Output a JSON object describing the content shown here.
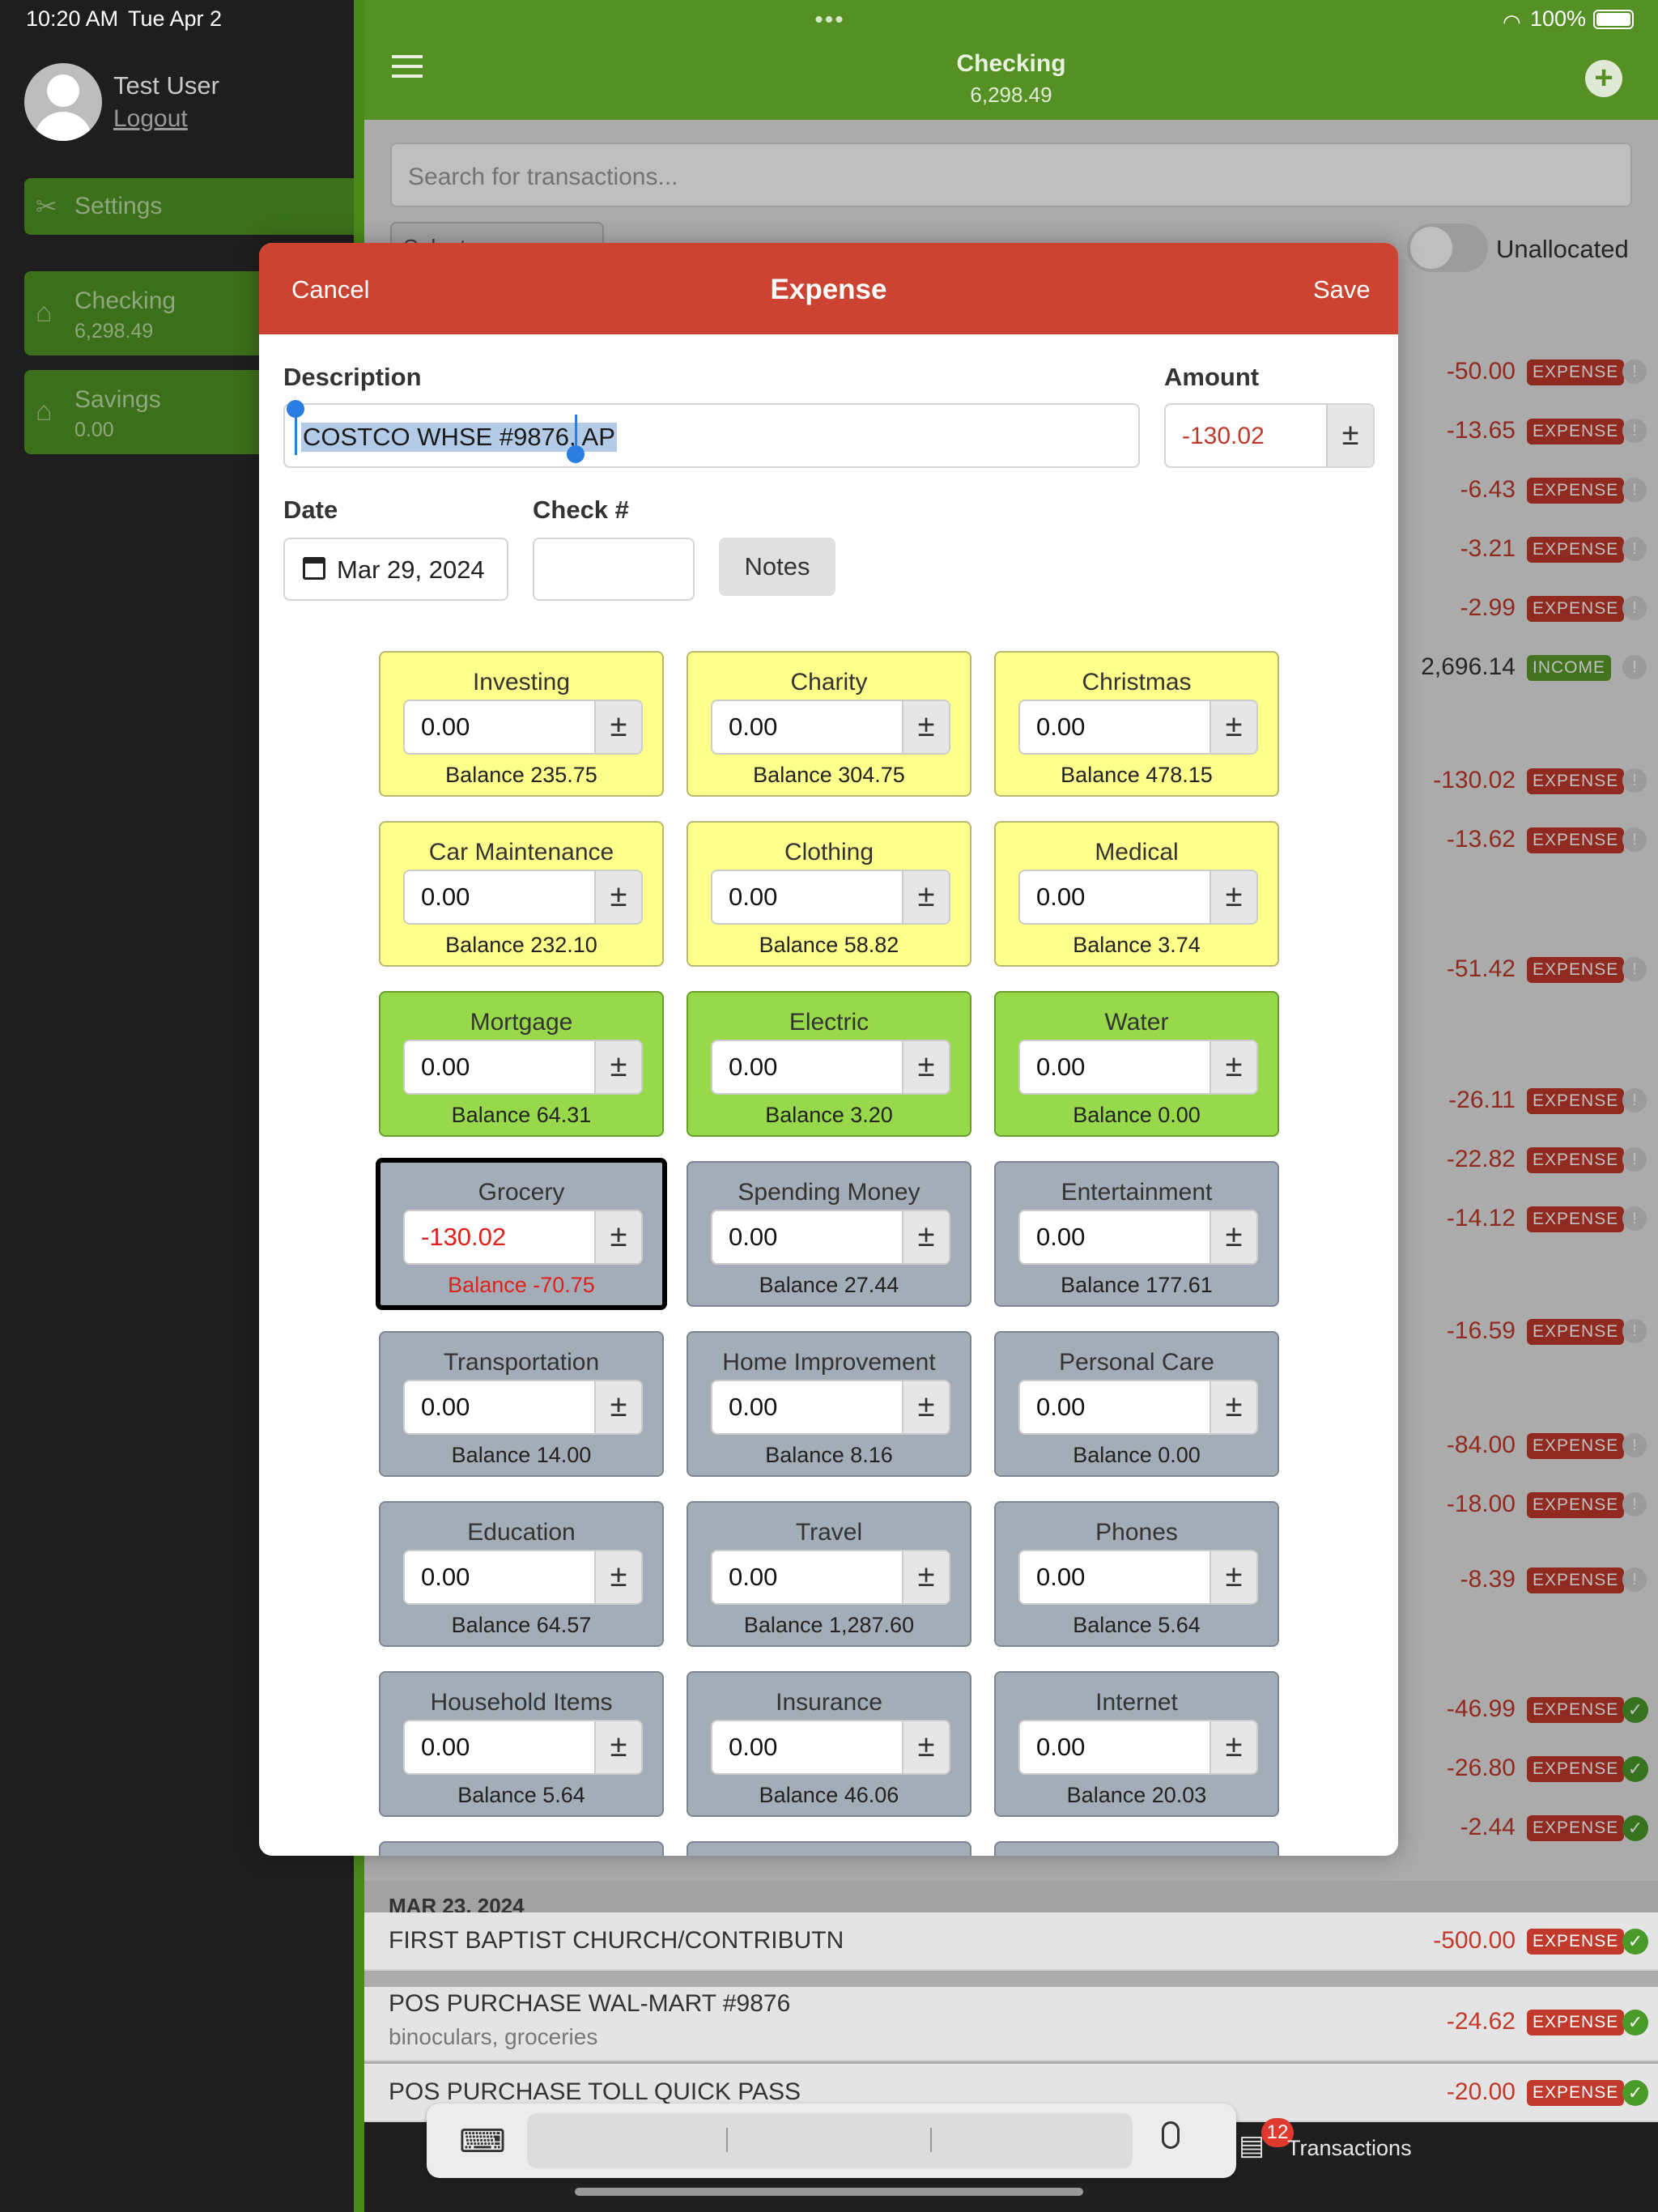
{
  "status_bar": {
    "time": "10:20 AM",
    "date": "Tue Apr 2",
    "battery": "100%"
  },
  "sidebar": {
    "user_name": "Test User",
    "logout_label": "Logout",
    "settings_label": "Settings",
    "accounts": [
      {
        "name": "Checking",
        "balance": "6,298.49"
      },
      {
        "name": "Savings",
        "balance": "0.00"
      }
    ]
  },
  "header": {
    "title": "Checking",
    "balance": "6,298.49"
  },
  "search": {
    "placeholder": "Search for transactions..."
  },
  "select_button_label": "Select",
  "unallocated_label": "Unallocated",
  "transactions_right": [
    {
      "amount": "-50.00",
      "type": "EXPENSE",
      "status": "info"
    },
    {
      "amount": "-13.65",
      "type": "EXPENSE",
      "status": "info"
    },
    {
      "amount": "-6.43",
      "type": "EXPENSE",
      "status": "info"
    },
    {
      "amount": "-3.21",
      "type": "EXPENSE",
      "status": "info"
    },
    {
      "amount": "-2.99",
      "type": "EXPENSE",
      "status": "info"
    },
    {
      "amount": "2,696.14",
      "type": "INCOME",
      "status": "info"
    },
    {
      "amount": "-130.02",
      "type": "EXPENSE",
      "status": "info"
    },
    {
      "amount": "-13.62",
      "type": "EXPENSE",
      "status": "info"
    },
    {
      "amount": "-51.42",
      "type": "EXPENSE",
      "status": "info"
    },
    {
      "amount": "-26.11",
      "type": "EXPENSE",
      "status": "info"
    },
    {
      "amount": "-22.82",
      "type": "EXPENSE",
      "status": "info"
    },
    {
      "amount": "-14.12",
      "type": "EXPENSE",
      "status": "info"
    },
    {
      "amount": "-16.59",
      "type": "EXPENSE",
      "status": "info"
    },
    {
      "amount": "-84.00",
      "type": "EXPENSE",
      "status": "info"
    },
    {
      "amount": "-18.00",
      "type": "EXPENSE",
      "status": "info"
    },
    {
      "amount": "-8.39",
      "type": "EXPENSE",
      "status": "info"
    },
    {
      "amount": "-46.99",
      "type": "EXPENSE",
      "status": "cleared"
    },
    {
      "amount": "-26.80",
      "type": "EXPENSE",
      "status": "cleared"
    },
    {
      "amount": "-2.44",
      "type": "EXPENSE",
      "status": "cleared"
    }
  ],
  "date_group": "MAR 23, 2024",
  "transactions_bottom": [
    {
      "description": "FIRST BAPTIST CHURCH/CONTRIBUTN",
      "note": "",
      "amount": "-500.00",
      "type": "EXPENSE"
    },
    {
      "description": "POS PURCHASE WAL-MART #9876",
      "note": "binoculars, groceries",
      "amount": "-24.62",
      "type": "EXPENSE"
    },
    {
      "description": "POS PURCHASE TOLL QUICK PASS",
      "note": "",
      "amount": "-20.00",
      "type": "EXPENSE"
    }
  ],
  "modal": {
    "cancel_label": "Cancel",
    "title": "Expense",
    "save_label": "Save",
    "description_label": "Description",
    "description_value": "COSTCO WHSE #9876, AP",
    "amount_label": "Amount",
    "amount_value": "-130.02",
    "date_label": "Date",
    "date_value": "Mar 29, 2024",
    "check_label": "Check #",
    "check_value": "",
    "notes_label": "Notes",
    "pm_symbol": "±",
    "categories": [
      {
        "name": "Investing",
        "value": "0.00",
        "balance": "Balance 235.75",
        "color": "yellow"
      },
      {
        "name": "Charity",
        "value": "0.00",
        "balance": "Balance 304.75",
        "color": "yellow"
      },
      {
        "name": "Christmas",
        "value": "0.00",
        "balance": "Balance 478.15",
        "color": "yellow"
      },
      {
        "name": "Car Maintenance",
        "value": "0.00",
        "balance": "Balance 232.10",
        "color": "yellow"
      },
      {
        "name": "Clothing",
        "value": "0.00",
        "balance": "Balance 58.82",
        "color": "yellow"
      },
      {
        "name": "Medical",
        "value": "0.00",
        "balance": "Balance 3.74",
        "color": "yellow"
      },
      {
        "name": "Mortgage",
        "value": "0.00",
        "balance": "Balance 64.31",
        "color": "green"
      },
      {
        "name": "Electric",
        "value": "0.00",
        "balance": "Balance 3.20",
        "color": "green"
      },
      {
        "name": "Water",
        "value": "0.00",
        "balance": "Balance 0.00",
        "color": "green"
      },
      {
        "name": "Grocery",
        "value": "-130.02",
        "balance": "Balance -70.75",
        "color": "slate",
        "selected": true
      },
      {
        "name": "Spending Money",
        "value": "0.00",
        "balance": "Balance 27.44",
        "color": "slate"
      },
      {
        "name": "Entertainment",
        "value": "0.00",
        "balance": "Balance 177.61",
        "color": "slate"
      },
      {
        "name": "Transportation",
        "value": "0.00",
        "balance": "Balance 14.00",
        "color": "slate"
      },
      {
        "name": "Home Improvement",
        "value": "0.00",
        "balance": "Balance 8.16",
        "color": "slate"
      },
      {
        "name": "Personal Care",
        "value": "0.00",
        "balance": "Balance 0.00",
        "color": "slate"
      },
      {
        "name": "Education",
        "value": "0.00",
        "balance": "Balance 64.57",
        "color": "slate"
      },
      {
        "name": "Travel",
        "value": "0.00",
        "balance": "Balance 1,287.60",
        "color": "slate"
      },
      {
        "name": "Phones",
        "value": "0.00",
        "balance": "Balance 5.64",
        "color": "slate"
      },
      {
        "name": "Household Items",
        "value": "0.00",
        "balance": "Balance 5.64",
        "color": "slate"
      },
      {
        "name": "Insurance",
        "value": "0.00",
        "balance": "Balance 46.06",
        "color": "slate"
      },
      {
        "name": "Internet",
        "value": "0.00",
        "balance": "Balance 20.03",
        "color": "slate"
      }
    ]
  },
  "bottom_bar": {
    "tab_label": "Transactions",
    "badge_count": "12"
  },
  "colors": {
    "brand_green": "#549024",
    "expense_red": "#c0392b",
    "modal_red": "#cc4331",
    "income_green": "#5a9a2a"
  }
}
